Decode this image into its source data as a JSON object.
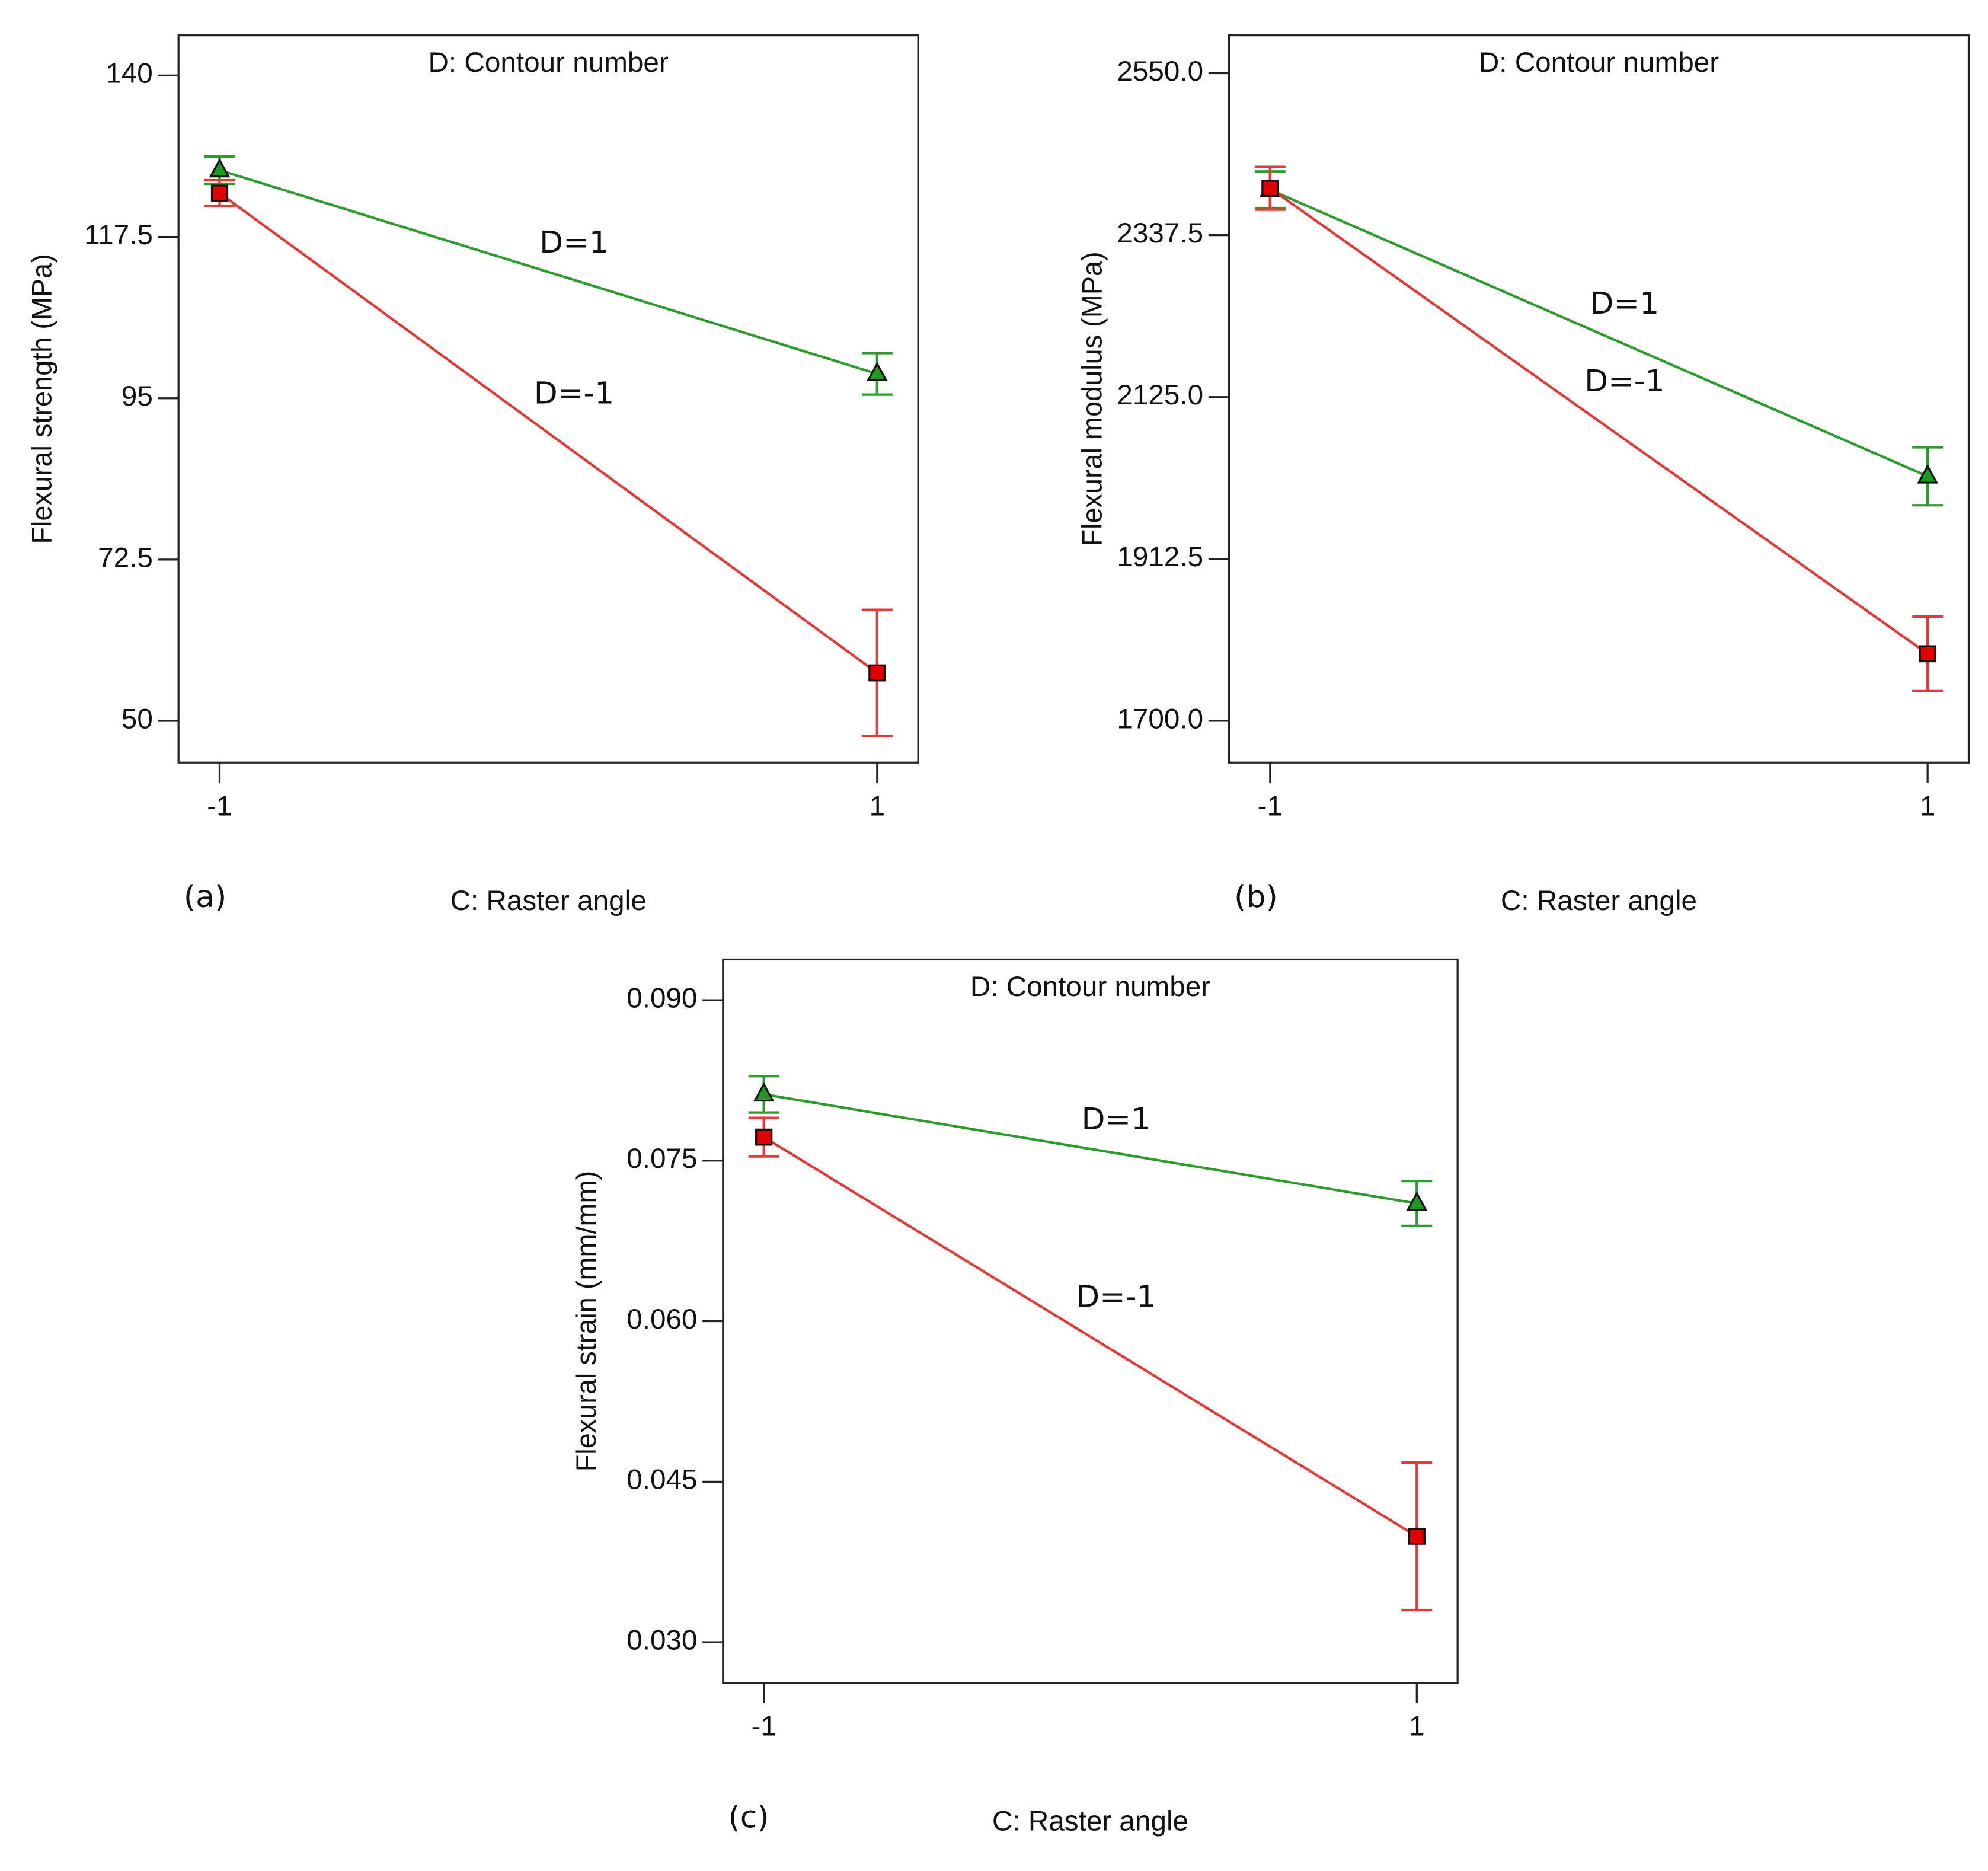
{
  "chart_data": [
    {
      "type": "line",
      "panel_label": "(a)",
      "title": "D: Contour number",
      "xlabel": "C: Raster angle",
      "ylabel": "Flexural strength (MPa)",
      "x": [
        -1,
        1
      ],
      "xlim": [
        -1.125,
        1.125
      ],
      "xticks": [
        -1,
        1
      ],
      "ylim": [
        44.2,
        145.6
      ],
      "yticks": [
        140,
        117.5,
        95,
        72.5,
        50
      ],
      "series": [
        {
          "name": "D=1",
          "color": "#2e9b2e",
          "label_color": "#7a9a3a",
          "marker": "triangle",
          "marker_color": "#1f9a1f",
          "values": [
            126.8,
            98.4
          ],
          "errors": [
            1.9,
            2.9
          ]
        },
        {
          "name": "D=-1",
          "color": "#e03a3a",
          "label_color": "#c00000",
          "marker": "square",
          "marker_color": "#e00000",
          "values": [
            123.6,
            56.7
          ],
          "errors": [
            1.8,
            8.8
          ]
        }
      ]
    },
    {
      "type": "line",
      "panel_label": "(b)",
      "title": "D: Contour number",
      "xlabel": "C: Raster angle",
      "ylabel": "Flexural modulus (MPa)",
      "x": [
        -1,
        1
      ],
      "xlim": [
        -1.125,
        1.125
      ],
      "xticks": [
        -1,
        1
      ],
      "ylim": [
        1645.3,
        2599.7
      ],
      "yticks": [
        {
          "value": 2550,
          "label": "2550.0"
        },
        2337.5,
        {
          "value": 2125,
          "label": "2125.0"
        },
        1912.5,
        {
          "value": 1700,
          "label": "1700.0"
        }
      ],
      "series": [
        {
          "name": "D=1",
          "color": "#2e9b2e",
          "label_color": "#7a9a3a",
          "marker": "triangle",
          "marker_color": "#1f9a1f",
          "values": [
            2397,
            2021
          ],
          "errors": [
            24,
            38
          ]
        },
        {
          "name": "D=-1",
          "color": "#e03a3a",
          "label_color": "#c00000",
          "marker": "square",
          "marker_color": "#e00000",
          "values": [
            2399,
            1788
          ],
          "errors": [
            28,
            49
          ]
        }
      ]
    },
    {
      "type": "line",
      "panel_label": "(c)",
      "title": "D: Contour number",
      "xlabel": "C: Raster angle",
      "ylabel": "Flexural strain (mm/mm)",
      "x": [
        -1,
        1
      ],
      "xlim": [
        -1.125,
        1.125
      ],
      "xticks": [
        -1,
        1
      ],
      "ylim": [
        0.0262,
        0.0938
      ],
      "yticks": [
        {
          "value": 0.09,
          "label": "0.090"
        },
        0.075,
        {
          "value": 0.06,
          "label": "0.060"
        },
        0.045,
        {
          "value": 0.03,
          "label": "0.030"
        }
      ],
      "series": [
        {
          "name": "D=1",
          "color": "#2e9b2e",
          "label_color": "#7a9a3a",
          "marker": "triangle",
          "marker_color": "#1f9a1f",
          "values": [
            0.0812,
            0.071
          ],
          "errors": [
            0.0017,
            0.0021
          ]
        },
        {
          "name": "D=-1",
          "color": "#e03a3a",
          "label_color": "#c00000",
          "marker": "square",
          "marker_color": "#e00000",
          "values": [
            0.0772,
            0.0399
          ],
          "errors": [
            0.0018,
            0.0069
          ]
        }
      ]
    }
  ]
}
